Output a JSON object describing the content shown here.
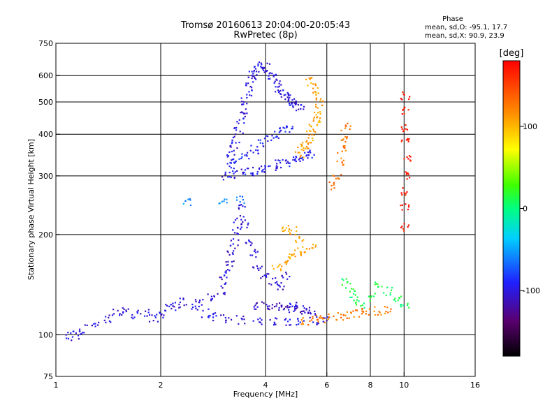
{
  "header": {
    "title": "Tromsø 20160613 20:04:00-20:05:43",
    "subtitle": "RwPretec (8p)",
    "phase_title": "Phase",
    "phase_o": "mean, sd,O: -95.1, 17.7",
    "phase_x": "mean, sd,X:  90.9, 23.9"
  },
  "chart_data": {
    "type": "scatter",
    "title": "Tromsø 20160613 20:04:00-20:05:43",
    "subtitle": "RwPretec (8p)",
    "xlabel": "Frequency [MHz]",
    "ylabel": "Stationary phase Virtual Height [km]",
    "xscale": "log",
    "yscale": "log",
    "xlim": [
      1,
      16
    ],
    "ylim": [
      75,
      750
    ],
    "xticks": [
      {
        "v": 1,
        "label": "1"
      },
      {
        "v": 2,
        "label": "2"
      },
      {
        "v": 4,
        "label": "4"
      },
      {
        "v": 6,
        "label": "6"
      },
      {
        "v": 8,
        "label": "8"
      },
      {
        "v": 10,
        "label": "10"
      },
      {
        "v": 16,
        "label": "16"
      }
    ],
    "xgrid": [
      2,
      4,
      6,
      8,
      10
    ],
    "yticks": [
      {
        "v": 75,
        "label": "75"
      },
      {
        "v": 100,
        "label": "100"
      },
      {
        "v": 200,
        "label": "200"
      },
      {
        "v": 300,
        "label": "300"
      },
      {
        "v": 400,
        "label": "400"
      },
      {
        "v": 500,
        "label": "500"
      },
      {
        "v": 600,
        "label": "600"
      },
      {
        "v": 750,
        "label": "750"
      }
    ],
    "ygrid": [
      100,
      200,
      300,
      400,
      500,
      600
    ],
    "grid": true,
    "colorbar": {
      "label": "[deg]",
      "range": [
        -180,
        180
      ],
      "ticks": [
        {
          "v": 100,
          "label": "100"
        },
        {
          "v": 0,
          "label": "0"
        },
        {
          "v": -100,
          "label": "-100"
        }
      ],
      "colors": [
        "#000000",
        "#5a0070",
        "#2020ff",
        "#00d0ff",
        "#00ff80",
        "#40ff00",
        "#ffff00",
        "#ff9000",
        "#ff0000"
      ]
    },
    "traces": [
      {
        "phase": -100,
        "points": [
          [
            1.1,
            99
          ],
          [
            1.15,
            100
          ],
          [
            1.2,
            104
          ],
          [
            1.3,
            108
          ],
          [
            1.4,
            112
          ],
          [
            1.5,
            116
          ],
          [
            1.6,
            118
          ],
          [
            1.7,
            115
          ],
          [
            1.8,
            116
          ],
          [
            1.9,
            112
          ],
          [
            2.0,
            115
          ],
          [
            2.1,
            120
          ],
          [
            2.2,
            122
          ],
          [
            2.3,
            126
          ],
          [
            2.5,
            120
          ],
          [
            2.7,
            116
          ],
          [
            2.9,
            113
          ],
          [
            3.1,
            112
          ],
          [
            3.4,
            111
          ],
          [
            3.8,
            110
          ],
          [
            4.2,
            110
          ],
          [
            4.6,
            110
          ],
          [
            5.0,
            110
          ],
          [
            5.5,
            110
          ],
          [
            6.0,
            111
          ]
        ]
      },
      {
        "phase": -105,
        "points": [
          [
            2.6,
            126
          ],
          [
            2.8,
            130
          ],
          [
            3.0,
            136
          ],
          [
            3.05,
            145
          ],
          [
            3.1,
            155
          ],
          [
            3.15,
            165
          ],
          [
            3.2,
            178
          ],
          [
            3.25,
            190
          ],
          [
            3.3,
            205
          ],
          [
            3.35,
            222
          ],
          [
            3.4,
            240
          ],
          [
            3.5,
            215
          ],
          [
            3.6,
            190
          ],
          [
            3.7,
            175
          ],
          [
            3.8,
            160
          ],
          [
            4.0,
            150
          ],
          [
            4.2,
            145
          ],
          [
            4.4,
            140
          ],
          [
            4.6,
            150
          ],
          [
            4.8,
            125
          ]
        ]
      },
      {
        "phase": -110,
        "points": [
          [
            3.8,
            122
          ],
          [
            4.0,
            122
          ],
          [
            4.2,
            121
          ],
          [
            4.4,
            121
          ],
          [
            4.6,
            120
          ],
          [
            4.8,
            120
          ],
          [
            5.0,
            119
          ],
          [
            5.2,
            119
          ],
          [
            5.4,
            118
          ]
        ]
      },
      {
        "phase": -100,
        "points": [
          [
            3.1,
            300
          ],
          [
            3.15,
            320
          ],
          [
            3.2,
            340
          ],
          [
            3.25,
            360
          ],
          [
            3.3,
            385
          ],
          [
            3.35,
            410
          ],
          [
            3.4,
            440
          ],
          [
            3.45,
            470
          ],
          [
            3.5,
            500
          ],
          [
            3.55,
            530
          ],
          [
            3.6,
            560
          ],
          [
            3.65,
            590
          ],
          [
            3.7,
            615
          ],
          [
            3.8,
            630
          ],
          [
            3.9,
            640
          ],
          [
            4.0,
            635
          ],
          [
            4.1,
            610
          ],
          [
            4.2,
            590
          ],
          [
            4.3,
            570
          ],
          [
            4.4,
            550
          ],
          [
            4.5,
            530
          ],
          [
            4.6,
            520
          ],
          [
            4.7,
            510
          ],
          [
            4.8,
            500
          ],
          [
            4.9,
            490
          ],
          [
            5.0,
            480
          ]
        ]
      },
      {
        "phase": -95,
        "points": [
          [
            3.2,
            302
          ],
          [
            3.4,
            305
          ],
          [
            3.6,
            308
          ],
          [
            3.8,
            312
          ],
          [
            4.0,
            316
          ],
          [
            4.2,
            320
          ],
          [
            4.4,
            325
          ],
          [
            4.6,
            330
          ],
          [
            4.8,
            335
          ],
          [
            5.0,
            340
          ],
          [
            5.2,
            345
          ],
          [
            5.4,
            350
          ]
        ]
      },
      {
        "phase": -90,
        "points": [
          [
            3.3,
            330
          ],
          [
            3.5,
            345
          ],
          [
            3.7,
            360
          ],
          [
            3.9,
            375
          ],
          [
            4.1,
            390
          ],
          [
            4.3,
            400
          ],
          [
            4.5,
            410
          ],
          [
            4.7,
            418
          ]
        ]
      },
      {
        "phase": 110,
        "points": [
          [
            5.0,
            350
          ],
          [
            5.1,
            360
          ],
          [
            5.2,
            372
          ],
          [
            5.3,
            385
          ],
          [
            5.4,
            400
          ],
          [
            5.5,
            420
          ],
          [
            5.6,
            440
          ],
          [
            5.65,
            460
          ],
          [
            5.7,
            490
          ],
          [
            5.6,
            520
          ],
          [
            5.5,
            550
          ],
          [
            5.3,
            575
          ]
        ]
      },
      {
        "phase": 110,
        "points": [
          [
            4.3,
            160
          ],
          [
            4.5,
            165
          ],
          [
            4.7,
            170
          ],
          [
            4.9,
            175
          ],
          [
            5.1,
            180
          ],
          [
            5.4,
            185
          ],
          [
            5.0,
            195
          ],
          [
            4.8,
            205
          ],
          [
            4.6,
            210
          ]
        ]
      },
      {
        "phase": 125,
        "points": [
          [
            5.2,
            110
          ],
          [
            5.5,
            111
          ],
          [
            5.8,
            112
          ],
          [
            6.2,
            113
          ],
          [
            6.6,
            114
          ],
          [
            7.0,
            115
          ],
          [
            7.4,
            116
          ],
          [
            7.8,
            117
          ],
          [
            8.4,
            118
          ],
          [
            9.0,
            119
          ]
        ]
      },
      {
        "phase": 10,
        "points": [
          [
            6.8,
            145
          ],
          [
            7.0,
            135
          ],
          [
            7.2,
            128
          ],
          [
            7.5,
            124
          ],
          [
            8.0,
            130
          ],
          [
            8.5,
            140
          ],
          [
            9.0,
            135
          ],
          [
            9.5,
            128
          ],
          [
            10.0,
            122
          ]
        ]
      },
      {
        "phase": 130,
        "points": [
          [
            6.3,
            280
          ],
          [
            6.4,
            300
          ],
          [
            6.5,
            330
          ],
          [
            6.6,
            360
          ],
          [
            6.7,
            390
          ],
          [
            6.8,
            420
          ]
        ]
      },
      {
        "phase": 170,
        "points": [
          [
            10.0,
            210
          ],
          [
            10.05,
            240
          ],
          [
            10.1,
            270
          ],
          [
            10.15,
            300
          ],
          [
            10.2,
            340
          ],
          [
            10.1,
            380
          ],
          [
            10.0,
            420
          ],
          [
            10.05,
            470
          ],
          [
            10.1,
            520
          ]
        ]
      },
      {
        "phase": -60,
        "points": [
          [
            2.4,
            250
          ],
          [
            3.0,
            252
          ],
          [
            3.4,
            255
          ]
        ]
      }
    ]
  }
}
